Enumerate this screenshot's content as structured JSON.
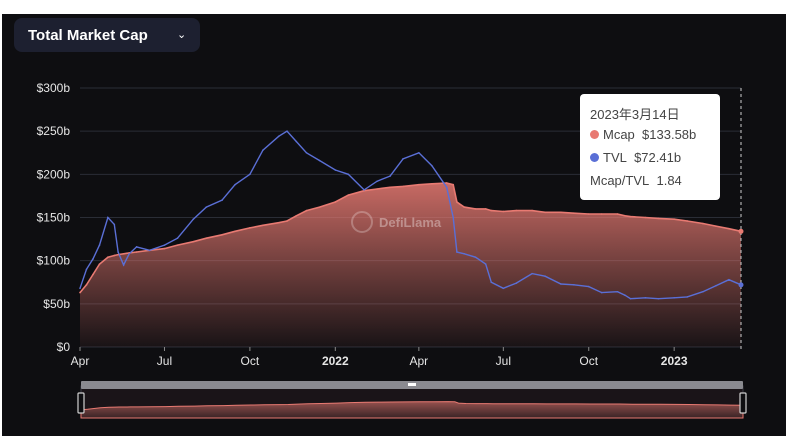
{
  "header": {
    "selector_label": "Total Market Cap",
    "chevron_icon": "chevron-down-icon"
  },
  "watermark": "DefiLlama",
  "tooltip": {
    "date": "2023年3月14日",
    "mcap_label": "Mcap",
    "mcap_value": "$133.58b",
    "tvl_label": "TVL",
    "tvl_value": "$72.41b",
    "ratio_label": "Mcap/TVL",
    "ratio_value": "1.84"
  },
  "colors": {
    "mcap": "#e87a72",
    "tvl": "#5a6fd6",
    "background": "#0e0e11"
  },
  "chart_data": {
    "type": "area",
    "x_unit": "date",
    "x": [
      "2021-04-01",
      "2021-04-08",
      "2021-04-15",
      "2021-04-22",
      "2021-05-01",
      "2021-05-08",
      "2021-05-12",
      "2021-05-18",
      "2021-05-24",
      "2021-06-01",
      "2021-06-15",
      "2021-07-01",
      "2021-07-15",
      "2021-08-01",
      "2021-08-15",
      "2021-09-01",
      "2021-09-15",
      "2021-10-01",
      "2021-10-15",
      "2021-11-01",
      "2021-11-10",
      "2021-11-20",
      "2021-12-01",
      "2021-12-15",
      "2022-01-01",
      "2022-01-15",
      "2022-02-01",
      "2022-02-15",
      "2022-03-01",
      "2022-03-15",
      "2022-04-01",
      "2022-04-15",
      "2022-05-01",
      "2022-05-08",
      "2022-05-12",
      "2022-05-20",
      "2022-06-01",
      "2022-06-12",
      "2022-06-18",
      "2022-07-01",
      "2022-07-15",
      "2022-08-01",
      "2022-08-15",
      "2022-09-01",
      "2022-09-15",
      "2022-10-01",
      "2022-10-15",
      "2022-11-01",
      "2022-11-09",
      "2022-11-15",
      "2022-12-01",
      "2022-12-15",
      "2023-01-01",
      "2023-01-15",
      "2023-02-01",
      "2023-02-15",
      "2023-03-01",
      "2023-03-14"
    ],
    "series": [
      {
        "name": "Mcap",
        "values": [
          63,
          72,
          84,
          96,
          104,
          106,
          107,
          108,
          109,
          110,
          112,
          114,
          118,
          122,
          126,
          130,
          134,
          138,
          141,
          144,
          146,
          152,
          158,
          162,
          168,
          176,
          181,
          183,
          185,
          186,
          188,
          189,
          190,
          188,
          168,
          162,
          160,
          160,
          158,
          157,
          158,
          158,
          156,
          156,
          155,
          154,
          154,
          154,
          152,
          151,
          150,
          149,
          148,
          146,
          143,
          140,
          137,
          134
        ]
      },
      {
        "name": "TVL",
        "values": [
          68,
          90,
          102,
          118,
          150,
          142,
          110,
          95,
          108,
          116,
          112,
          118,
          126,
          148,
          162,
          170,
          188,
          200,
          228,
          244,
          250,
          238,
          225,
          216,
          205,
          200,
          182,
          192,
          198,
          218,
          225,
          210,
          185,
          150,
          110,
          108,
          104,
          96,
          75,
          68,
          74,
          85,
          82,
          73,
          72,
          70,
          63,
          64,
          60,
          56,
          57,
          56,
          57,
          58,
          64,
          71,
          78,
          72
        ]
      }
    ],
    "tooltip_date": "2023-03-14",
    "y_ticks": [
      "$0",
      "$50b",
      "$100b",
      "$150b",
      "$200b",
      "$250b",
      "$300b"
    ],
    "ylim": [
      0,
      300
    ],
    "x_ticks": [
      "Apr",
      "Jul",
      "Oct",
      "2022",
      "Apr",
      "Jul",
      "Oct",
      "2023"
    ],
    "x_tick_dates": [
      "2021-04-01",
      "2021-07-01",
      "2021-10-01",
      "2022-01-01",
      "2022-04-01",
      "2022-07-01",
      "2022-10-01",
      "2023-01-01"
    ],
    "x_range": [
      "2021-04-01",
      "2023-03-14"
    ],
    "grid": true,
    "legend": "tooltip"
  }
}
